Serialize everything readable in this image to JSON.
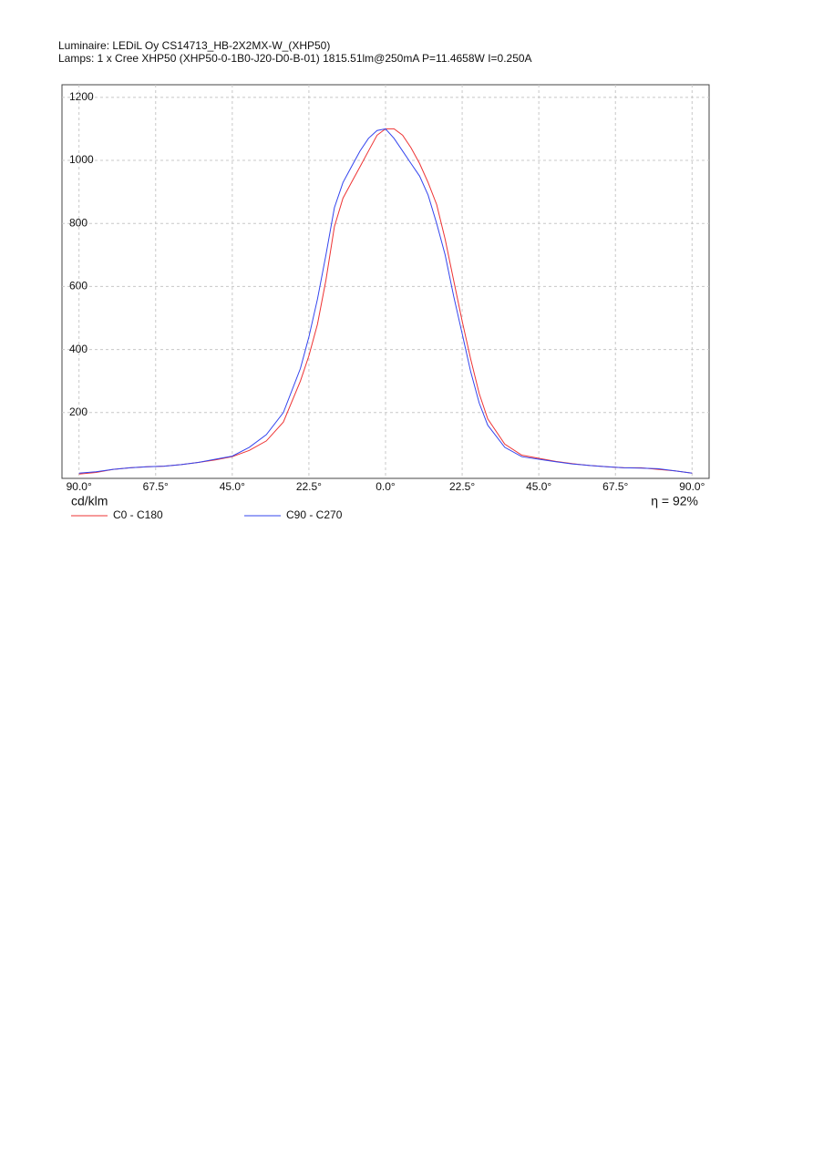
{
  "chart_data": {
    "type": "line",
    "title": "Luminaire: LEDiL Oy CS14713_HB-2X2MX-W_(XHP50)",
    "subtitle": "Lamps: 1 x Cree  XHP50  (XHP50-0-1B0-J20-D0-B-01)  1815.51lm@250mA  P=11.4658W  I=0.250A",
    "y_label": "cd/klm",
    "annotation": "η = 92%",
    "x": [
      -90,
      -85,
      -80,
      -75,
      -70,
      -65,
      -60,
      -55,
      -50,
      -45,
      -40,
      -35,
      -30,
      -25,
      -22.5,
      -20,
      -17.5,
      -15,
      -12.5,
      -10,
      -7.5,
      -5,
      -2.5,
      0,
      2.5,
      5,
      7.5,
      10,
      12.5,
      15,
      17.5,
      20,
      22.5,
      25,
      27.5,
      30,
      35,
      40,
      45,
      50,
      55,
      60,
      65,
      70,
      75,
      80,
      85,
      90
    ],
    "series": [
      {
        "name": "C0 - C180",
        "color": "#ee3333",
        "values": [
          5,
          10,
          20,
          25,
          28,
          30,
          35,
          42,
          50,
          60,
          80,
          110,
          170,
          300,
          380,
          480,
          620,
          790,
          880,
          930,
          980,
          1030,
          1080,
          1100,
          1100,
          1080,
          1040,
          990,
          930,
          860,
          750,
          620,
          490,
          370,
          260,
          180,
          100,
          65,
          55,
          45,
          38,
          32,
          28,
          25,
          25,
          20,
          15,
          8
        ]
      },
      {
        "name": "C90 - C270",
        "color": "#3344ee",
        "values": [
          8,
          12,
          20,
          25,
          28,
          30,
          35,
          42,
          52,
          62,
          90,
          130,
          200,
          340,
          440,
          560,
          700,
          850,
          930,
          980,
          1030,
          1070,
          1095,
          1100,
          1070,
          1030,
          990,
          950,
          890,
          800,
          700,
          570,
          450,
          330,
          230,
          160,
          90,
          60,
          52,
          44,
          37,
          32,
          28,
          25,
          24,
          22,
          15,
          8
        ]
      }
    ],
    "xlim": [
      -95,
      95
    ],
    "ylim": [
      0,
      1240
    ],
    "xticks": [
      {
        "value": -90,
        "label": "90.0°"
      },
      {
        "value": -67.5,
        "label": "67.5°"
      },
      {
        "value": -45,
        "label": "45.0°"
      },
      {
        "value": -22.5,
        "label": "22.5°"
      },
      {
        "value": 0,
        "label": "0.0°"
      },
      {
        "value": 22.5,
        "label": "22.5°"
      },
      {
        "value": 45,
        "label": "45.0°"
      },
      {
        "value": 67.5,
        "label": "67.5°"
      },
      {
        "value": 90,
        "label": "90.0°"
      }
    ],
    "yticks": [
      200,
      400,
      600,
      800,
      1000,
      1200
    ],
    "grid": true
  }
}
